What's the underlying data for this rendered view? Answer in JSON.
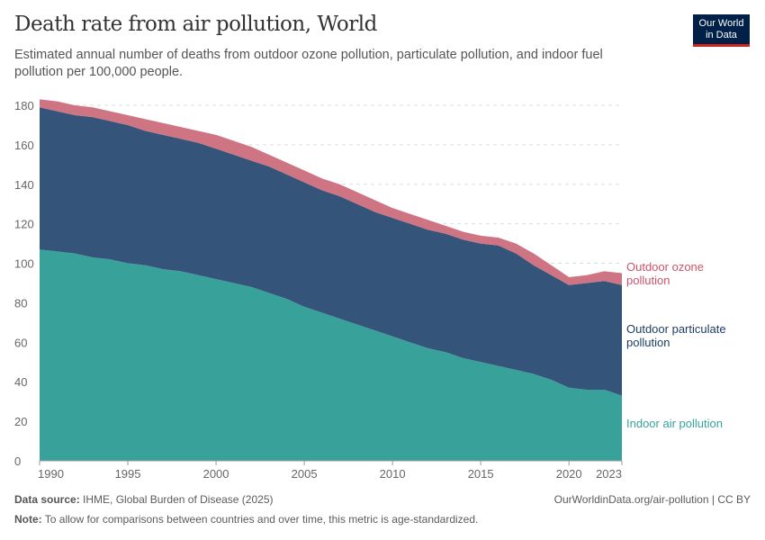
{
  "header": {
    "title": "Death rate from air pollution, World",
    "subtitle": "Estimated annual number of deaths from outdoor ozone pollution, particulate pollution, and indoor fuel pollution per 100,000 people.",
    "logo": "Our World in Data"
  },
  "footer": {
    "source_label": "Data source:",
    "source": "IHME, Global Burden of Disease (2025)",
    "url": "OurWorldinData.org/air-pollution | CC BY",
    "note_label": "Note:",
    "note": "To allow for comparisons between countries and over time, this metric is age-standardized."
  },
  "chart_data": {
    "type": "area",
    "stacked": true,
    "grid": true,
    "legend": "right-labels",
    "xlim": [
      1990,
      2023
    ],
    "ylim": [
      0,
      180
    ],
    "xticks": [
      1990,
      1995,
      2000,
      2005,
      2010,
      2015,
      2020,
      2023
    ],
    "yticks": [
      0,
      20,
      40,
      60,
      80,
      100,
      120,
      140,
      160,
      180
    ],
    "x": [
      1990,
      1991,
      1992,
      1993,
      1994,
      1995,
      1996,
      1997,
      1998,
      1999,
      2000,
      2001,
      2002,
      2003,
      2004,
      2005,
      2006,
      2007,
      2008,
      2009,
      2010,
      2011,
      2012,
      2013,
      2014,
      2015,
      2016,
      2017,
      2018,
      2019,
      2020,
      2021,
      2022,
      2023
    ],
    "series": [
      {
        "name": "Indoor air pollution",
        "color": "#38a29a",
        "values": [
          107,
          106,
          105,
          103,
          102,
          100,
          99,
          97,
          96,
          94,
          92,
          90,
          88,
          85,
          82,
          78,
          75,
          72,
          69,
          66,
          63,
          60,
          57,
          55,
          52,
          50,
          48,
          46,
          44,
          41,
          37,
          36,
          36,
          33
        ]
      },
      {
        "name": "Outdoor particulate pollution",
        "color": "#34547a",
        "label_color": "#1d3d63",
        "values": [
          72,
          71,
          70,
          71,
          70,
          70,
          68,
          68,
          67,
          67,
          66,
          65,
          64,
          64,
          63,
          63,
          62,
          62,
          61,
          60,
          60,
          60,
          60,
          60,
          60,
          60,
          61,
          59,
          55,
          53,
          52,
          54,
          55,
          56
        ]
      },
      {
        "name": "Outdoor ozone pollution",
        "color": "#cf7483",
        "label_color": "#c9546a",
        "values": [
          4,
          5,
          5,
          5,
          5,
          5,
          6,
          6,
          6,
          6,
          7,
          7,
          7,
          6,
          6,
          6,
          6,
          6,
          6,
          6,
          5,
          5,
          5,
          4,
          4,
          4,
          4,
          5,
          6,
          5,
          4,
          4,
          5,
          6
        ]
      }
    ]
  }
}
